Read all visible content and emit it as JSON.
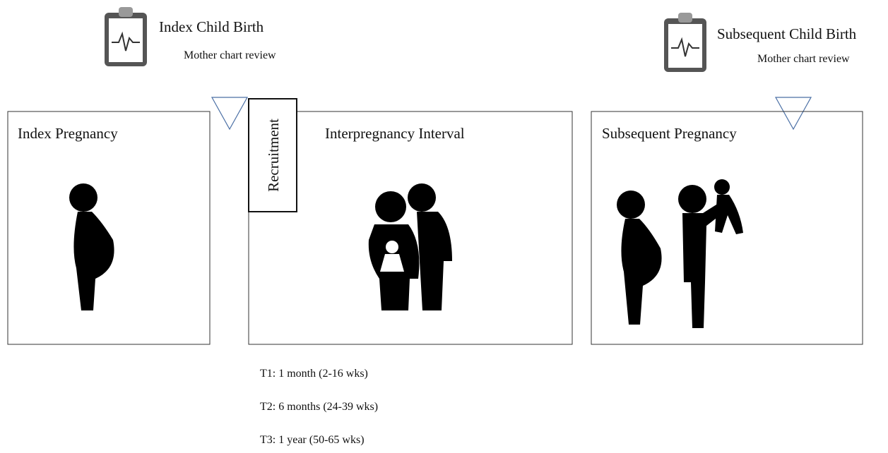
{
  "events": [
    {
      "title": "Index Child Birth",
      "subtitle": "Mother chart review"
    },
    {
      "title": "Subsequent Child Birth",
      "subtitle": "Mother chart review"
    }
  ],
  "phases": [
    {
      "label": "Index Pregnancy"
    },
    {
      "label": "Interpregnancy Interval"
    },
    {
      "label": "Subsequent Pregnancy"
    }
  ],
  "recruitment": "Recruitment",
  "timepoints": [
    "T1: 1 month (2-16 wks)",
    "T2: 6 months (24-39 wks)",
    "T3: 1 year (50-65 wks)"
  ]
}
